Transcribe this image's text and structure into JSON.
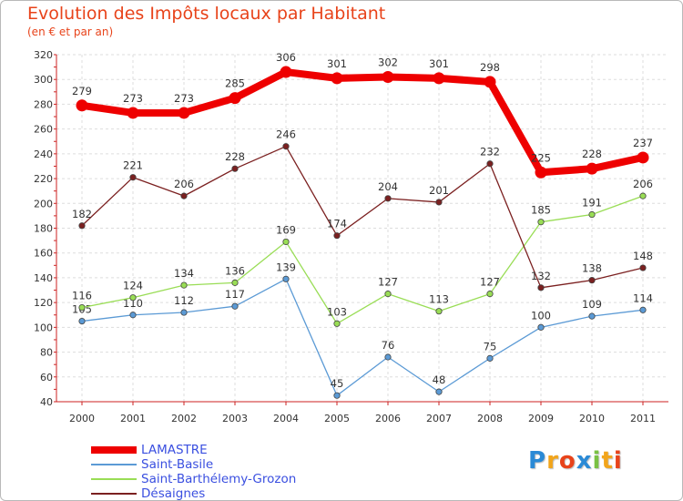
{
  "header": {
    "title": "Evolution des Impôts locaux par Habitant",
    "subtitle": "(en € et par an)"
  },
  "chart_data": {
    "type": "line",
    "title": "Evolution des Impôts locaux par Habitant",
    "subtitle": "(en € et par an)",
    "xlabel": "",
    "ylabel": "",
    "x": [
      "2000",
      "2001",
      "2002",
      "2003",
      "2004",
      "2005",
      "2006",
      "2007",
      "2008",
      "2009",
      "2010",
      "2011"
    ],
    "ylim": [
      40,
      320
    ],
    "yticks": [
      40,
      60,
      80,
      100,
      120,
      140,
      160,
      180,
      200,
      220,
      240,
      260,
      280,
      300,
      320
    ],
    "grid": true,
    "legend_position": "bottom-left",
    "series": [
      {
        "name": "LAMASTRE",
        "color": "#ee0000",
        "values": [
          279,
          273,
          273,
          285,
          306,
          301,
          302,
          301,
          298,
          225,
          228,
          237
        ]
      },
      {
        "name": "Saint-Basile",
        "color": "#5b9ad5",
        "values": [
          105,
          110,
          112,
          117,
          139,
          45,
          76,
          48,
          75,
          100,
          109,
          114
        ]
      },
      {
        "name": "Saint-Barthélemy-Grozon",
        "color": "#99dd55",
        "values": [
          116,
          124,
          134,
          136,
          169,
          103,
          127,
          113,
          127,
          185,
          191,
          206
        ]
      },
      {
        "name": "Désaignes",
        "color": "#7b2020",
        "values": [
          182,
          221,
          206,
          228,
          246,
          174,
          204,
          201,
          232,
          132,
          138,
          148
        ]
      }
    ]
  },
  "logo": {
    "letters": [
      "P",
      "r",
      "o",
      "x",
      "i",
      "t",
      "i"
    ],
    "colors": [
      "#2a8ad6",
      "#f2a51b",
      "#e8431a",
      "#2a8ad6",
      "#7ac143",
      "#f2a51b",
      "#e8431a"
    ]
  }
}
